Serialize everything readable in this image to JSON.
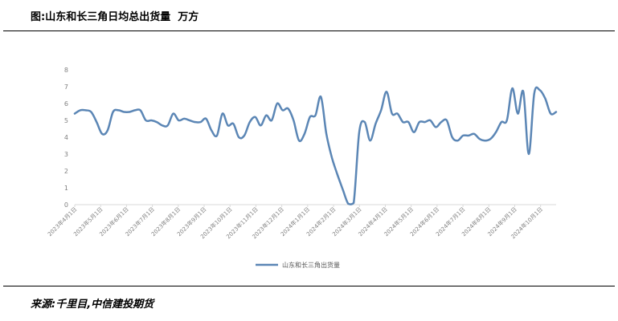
{
  "header": {
    "title": "图:山东和长三角日均总出货量  万方"
  },
  "footer": {
    "source": "来源:千里目,中信建投期货"
  },
  "chart_data": {
    "type": "line",
    "title": "图:山东和长三角日均总出货量  万方",
    "xlabel": "",
    "ylabel": "",
    "ylim": [
      0,
      8
    ],
    "yticks": [
      0,
      1,
      2,
      3,
      4,
      5,
      6,
      7,
      8
    ],
    "grid": false,
    "legend_position": "bottom",
    "line_color": "#5b86b5",
    "x_tick_labels": [
      "2023年4月1日",
      "2023年5月1日",
      "2023年6月1日",
      "2023年7月1日",
      "2023年8月1日",
      "2023年9月1日",
      "2023年10月1日",
      "2023年11月1日",
      "2023年12月1日",
      "2024年1月1日",
      "2024年2月1日",
      "2024年3月1日",
      "2024年4月1日",
      "2024年5月1日",
      "2024年6月1日",
      "2024年7月1日",
      "2024年8月1日",
      "2024年9月1日",
      "2024年10月1日"
    ],
    "series": [
      {
        "name": "山东和长三角出货量",
        "values": [
          5.4,
          5.6,
          5.6,
          5.5,
          4.9,
          4.2,
          4.4,
          5.5,
          5.6,
          5.5,
          5.5,
          5.6,
          5.6,
          5.0,
          5.0,
          4.9,
          4.7,
          4.7,
          5.4,
          5.0,
          5.1,
          5.0,
          4.9,
          4.9,
          5.1,
          4.4,
          4.1,
          5.4,
          4.7,
          4.8,
          4.0,
          4.1,
          4.9,
          5.2,
          4.7,
          5.3,
          5.0,
          6.0,
          5.6,
          5.7,
          5.0,
          3.8,
          4.2,
          5.2,
          5.3,
          6.4,
          4.2,
          2.8,
          1.8,
          0.9,
          0.05,
          0.1,
          4.3,
          4.9,
          3.8,
          4.8,
          5.6,
          6.7,
          5.4,
          5.4,
          4.9,
          4.9,
          4.3,
          4.9,
          4.9,
          5.0,
          4.6,
          4.9,
          5.0,
          4.0,
          3.8,
          4.1,
          4.1,
          4.2,
          3.9,
          3.8,
          3.9,
          4.3,
          4.9,
          5.0,
          6.9,
          5.4,
          6.7,
          3.0,
          6.6,
          6.8,
          6.3,
          5.4,
          5.5
        ]
      }
    ]
  }
}
